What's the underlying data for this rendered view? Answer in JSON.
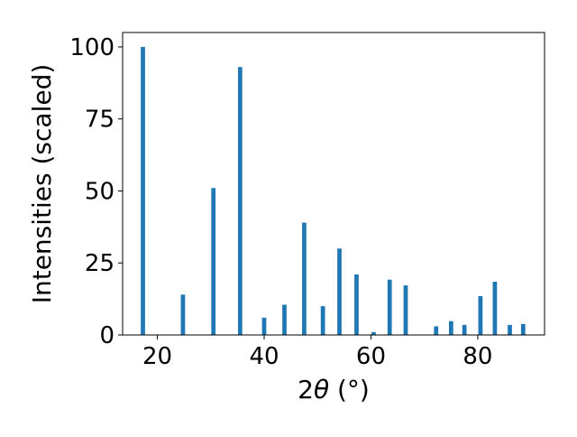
{
  "chart_data": {
    "type": "bar",
    "xlabel_prefix": "2",
    "xlabel_symbol": "θ",
    "xlabel_unit": " (°)",
    "ylabel": "Intensities (scaled)",
    "xlim": [
      13.5,
      92.5
    ],
    "ylim": [
      0,
      105
    ],
    "xticks": [
      20,
      40,
      60,
      80
    ],
    "yticks": [
      0,
      25,
      50,
      75,
      100
    ],
    "bar_width_data": 0.8,
    "grid": false,
    "legend": "none",
    "bar_color": "#1f77b4",
    "x": [
      17.3,
      24.8,
      30.5,
      35.5,
      40.0,
      43.8,
      47.5,
      51.0,
      54.1,
      57.3,
      60.5,
      63.5,
      66.5,
      72.2,
      75.0,
      77.5,
      80.5,
      83.2,
      86.0,
      88.5
    ],
    "values": [
      100,
      14,
      51,
      93,
      6,
      10.5,
      39,
      10,
      30,
      21,
      1,
      19.2,
      17.2,
      3,
      4.8,
      3.5,
      13.5,
      18.5,
      3.5,
      3.8
    ]
  }
}
